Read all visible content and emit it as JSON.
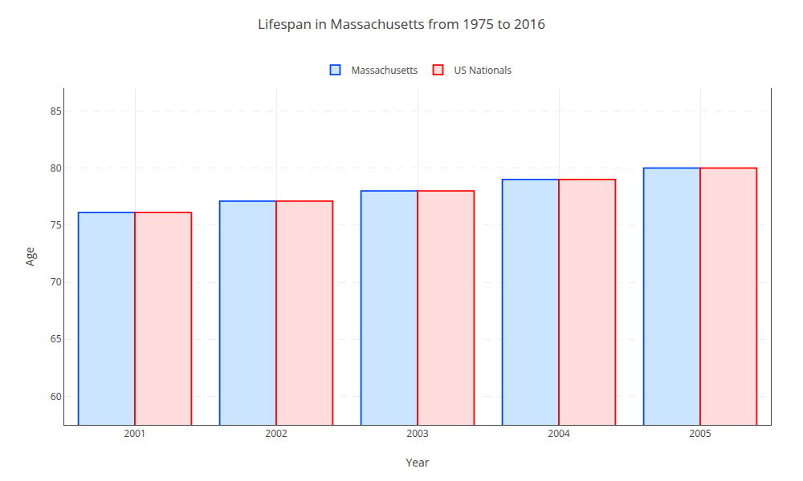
{
  "chart_data": {
    "type": "bar",
    "title": "Lifespan in Massachusetts from 1975 to 2016",
    "x_label": "Year",
    "y_label": "Age",
    "categories": [
      "2001",
      "2002",
      "2003",
      "2004",
      "2005"
    ],
    "series": [
      {
        "name": "Massachusetts",
        "color": "#cce5ff",
        "values": [
          76.1,
          77.1,
          78.0,
          79.0,
          80.0
        ]
      },
      {
        "name": "US Nationals",
        "color": "#ffdddd",
        "values": [
          76.1,
          77.1,
          78.0,
          79.0,
          80.0
        ]
      }
    ],
    "ylim": [
      57.5,
      87
    ],
    "yticks": [
      60,
      65,
      70,
      75,
      80,
      85
    ],
    "grid": true,
    "legend": "top"
  }
}
